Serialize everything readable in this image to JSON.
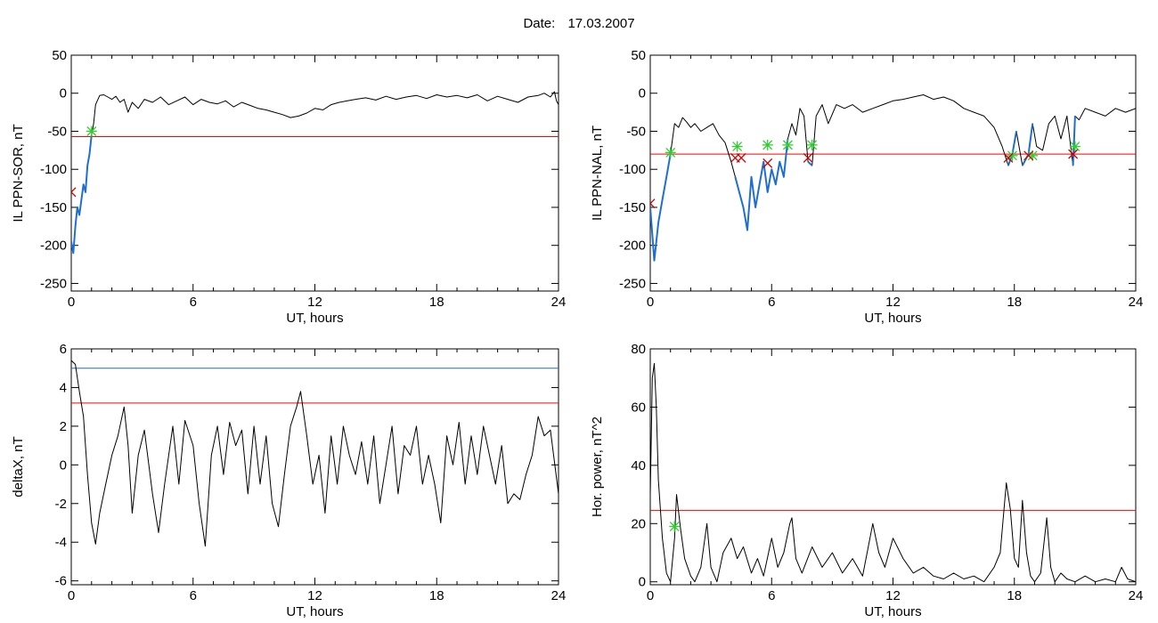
{
  "header": {
    "date_label": "Date:",
    "date_value": "17.03.2007"
  },
  "colors": {
    "trace": "#000000",
    "threshold_red": "#ff0000",
    "threshold_blue": "#1f6fd1",
    "highlight": "#1f6fd1",
    "marker_green": "#33cc33",
    "marker_red": "#cc0000"
  },
  "chart_data": [
    {
      "id": "sor",
      "type": "line",
      "xlabel": "UT, hours",
      "ylabel": "IL PPN-SOR, nT",
      "xlim": [
        0,
        24
      ],
      "ylim": [
        -260,
        50
      ],
      "xticks": [
        0,
        6,
        12,
        18,
        24
      ],
      "yticks": [
        50,
        0,
        -50,
        -100,
        -150,
        -200,
        -250
      ],
      "series": [
        {
          "x": [
            0,
            0.1,
            0.2,
            0.3,
            0.4,
            0.5,
            0.6,
            0.7,
            0.8,
            0.9,
            1.0,
            1.1,
            1.2,
            1.4,
            1.6,
            1.8,
            2.0,
            2.2,
            2.4,
            2.6,
            2.8,
            3.0,
            3.3,
            3.6,
            4.0,
            4.4,
            4.8,
            5.2,
            5.6,
            6.0,
            6.4,
            6.8,
            7.2,
            7.6,
            8.0,
            8.4,
            8.8,
            9.2,
            9.6,
            10.0,
            10.4,
            10.8,
            11.2,
            11.6,
            12.0,
            12.4,
            12.8,
            13.2,
            13.6,
            14.0,
            14.5,
            15.0,
            15.5,
            16.0,
            16.5,
            17.0,
            17.5,
            18.0,
            18.5,
            19.0,
            19.5,
            20.0,
            20.5,
            21.0,
            21.5,
            22.0,
            22.5,
            23.0,
            23.3,
            23.6,
            23.8,
            23.9,
            24.0
          ],
          "y": [
            -195,
            -210,
            -175,
            -150,
            -160,
            -140,
            -120,
            -130,
            -95,
            -80,
            -55,
            -40,
            -15,
            -3,
            -2,
            -5,
            -8,
            -4,
            -12,
            -8,
            -25,
            -12,
            -20,
            -8,
            -12,
            -5,
            -15,
            -10,
            -5,
            -15,
            -8,
            -12,
            -14,
            -10,
            -18,
            -12,
            -16,
            -20,
            -22,
            -25,
            -28,
            -32,
            -30,
            -26,
            -20,
            -22,
            -15,
            -12,
            -10,
            -8,
            -6,
            -9,
            -4,
            -8,
            -5,
            -3,
            -7,
            -2,
            -5,
            -3,
            -6,
            -2,
            -10,
            -4,
            -8,
            -12,
            -5,
            -3,
            0,
            -5,
            2,
            -10,
            -15
          ]
        },
        {
          "name": "",
          "x": [
            0,
            0.1,
            0.2,
            0.3,
            0.4,
            0.5,
            0.6,
            0.7,
            0.8,
            0.9,
            1.0
          ],
          "y": [
            -195,
            -210,
            -175,
            -150,
            -160,
            -140,
            -120,
            -130,
            -95,
            -80,
            -55
          ]
        }
      ],
      "threshold_red": -57,
      "markers_green": [
        {
          "x": 1.0,
          "y": -50
        }
      ],
      "markers_red": [
        {
          "x": 0.0,
          "y": -130
        }
      ]
    },
    {
      "id": "nal",
      "type": "line",
      "xlabel": "UT, hours",
      "ylabel": "IL PPN-NAL, nT",
      "xlim": [
        0,
        24
      ],
      "ylim": [
        -260,
        50
      ],
      "xticks": [
        0,
        6,
        12,
        18,
        24
      ],
      "yticks": [
        50,
        0,
        -50,
        -100,
        -150,
        -200,
        -250
      ],
      "series": [
        {
          "x": [
            0,
            0.2,
            0.4,
            0.6,
            0.8,
            1.0,
            1.2,
            1.4,
            1.6,
            1.8,
            2.0,
            2.2,
            2.5,
            2.8,
            3.1,
            3.4,
            3.7,
            4.0,
            4.2,
            4.4,
            4.6,
            4.8,
            5.0,
            5.2,
            5.4,
            5.6,
            5.8,
            6.0,
            6.2,
            6.4,
            6.6,
            6.8,
            7.0,
            7.2,
            7.4,
            7.6,
            7.8,
            8.0,
            8.2,
            8.5,
            8.8,
            9.2,
            9.6,
            10.0,
            10.5,
            11.0,
            11.5,
            12.0,
            12.5,
            13.0,
            13.5,
            14.0,
            14.5,
            15.0,
            15.5,
            16.0,
            16.5,
            17.0,
            17.4,
            17.7,
            17.9,
            18.1,
            18.4,
            18.7,
            18.9,
            19.1,
            19.4,
            19.7,
            20.0,
            20.3,
            20.6,
            20.9,
            21.0,
            21.2,
            21.5,
            22.0,
            22.5,
            23.0,
            23.5,
            24.0
          ],
          "y": [
            -150,
            -220,
            -170,
            -140,
            -110,
            -80,
            -40,
            -45,
            -32,
            -38,
            -45,
            -40,
            -50,
            -45,
            -40,
            -55,
            -65,
            -90,
            -110,
            -130,
            -150,
            -180,
            -110,
            -150,
            -120,
            -90,
            -130,
            -100,
            -120,
            -90,
            -110,
            -60,
            -40,
            -55,
            -20,
            -30,
            -90,
            -95,
            -30,
            -15,
            -40,
            -15,
            -20,
            -15,
            -25,
            -20,
            -15,
            -10,
            -8,
            -5,
            -2,
            -8,
            -5,
            -10,
            -20,
            -25,
            -30,
            -45,
            -70,
            -95,
            -80,
            -50,
            -95,
            -80,
            -40,
            -70,
            -75,
            -40,
            -30,
            -60,
            -30,
            -95,
            -30,
            -35,
            -20,
            -25,
            -30,
            -20,
            -25,
            -20
          ]
        },
        {
          "name": "",
          "x": [
            0,
            0.2,
            0.4,
            0.6,
            0.8,
            1.0
          ],
          "y": [
            -150,
            -220,
            -170,
            -140,
            -110,
            -80
          ]
        },
        {
          "name": "",
          "x": [
            4.2,
            4.4,
            4.6,
            4.8,
            5.0,
            5.2,
            5.4,
            5.6,
            5.8,
            6.0,
            6.2,
            6.4,
            6.6,
            6.8
          ],
          "y": [
            -110,
            -130,
            -150,
            -180,
            -110,
            -150,
            -120,
            -90,
            -130,
            -100,
            -120,
            -90,
            -110,
            -60
          ]
        },
        {
          "name": "",
          "x": [
            7.8,
            8.0
          ],
          "y": [
            -90,
            -95
          ]
        },
        {
          "name": "",
          "x": [
            17.7,
            17.9,
            18.1
          ],
          "y": [
            -95,
            -80,
            -50
          ]
        },
        {
          "name": "",
          "x": [
            18.4,
            18.7,
            18.9
          ],
          "y": [
            -95,
            -80,
            -40
          ]
        },
        {
          "name": "",
          "x": [
            20.9,
            21.0
          ],
          "y": [
            -95,
            -30
          ]
        }
      ],
      "threshold_red": -80,
      "markers_green": [
        {
          "x": 1.0,
          "y": -78
        },
        {
          "x": 4.3,
          "y": -70
        },
        {
          "x": 5.8,
          "y": -68
        },
        {
          "x": 6.8,
          "y": -68
        },
        {
          "x": 8.0,
          "y": -68
        },
        {
          "x": 17.9,
          "y": -82
        },
        {
          "x": 18.9,
          "y": -82
        },
        {
          "x": 21.0,
          "y": -70
        }
      ],
      "markers_red": [
        {
          "x": 0.0,
          "y": -145
        },
        {
          "x": 4.2,
          "y": -85
        },
        {
          "x": 4.5,
          "y": -85
        },
        {
          "x": 5.8,
          "y": -92
        },
        {
          "x": 7.8,
          "y": -85
        },
        {
          "x": 17.7,
          "y": -85
        },
        {
          "x": 18.7,
          "y": -82
        },
        {
          "x": 20.9,
          "y": -80
        }
      ]
    },
    {
      "id": "deltax",
      "type": "line",
      "xlabel": "UT, hours",
      "ylabel": "deltaX, nT",
      "xlim": [
        0,
        24
      ],
      "ylim": [
        -6.2,
        6
      ],
      "xticks": [
        0,
        6,
        12,
        18,
        24
      ],
      "yticks": [
        6,
        4,
        2,
        0,
        -2,
        -4,
        -6
      ],
      "series": [
        {
          "x": [
            0,
            0.2,
            0.4,
            0.6,
            0.8,
            1.0,
            1.2,
            1.4,
            1.7,
            2.0,
            2.3,
            2.6,
            2.8,
            3.0,
            3.3,
            3.6,
            4.0,
            4.3,
            4.6,
            5.0,
            5.3,
            5.6,
            6.0,
            6.3,
            6.6,
            6.9,
            7.2,
            7.5,
            7.8,
            8.1,
            8.4,
            8.7,
            9.0,
            9.3,
            9.6,
            9.9,
            10.2,
            10.5,
            10.8,
            11.1,
            11.3,
            11.6,
            11.9,
            12.2,
            12.5,
            12.8,
            13.1,
            13.4,
            13.7,
            14.0,
            14.3,
            14.6,
            14.9,
            15.2,
            15.5,
            15.8,
            16.1,
            16.4,
            16.7,
            17.0,
            17.3,
            17.6,
            17.9,
            18.2,
            18.5,
            18.8,
            19.1,
            19.4,
            19.7,
            20.0,
            20.3,
            20.6,
            20.9,
            21.2,
            21.5,
            21.8,
            22.1,
            22.4,
            22.7,
            23.0,
            23.3,
            23.6,
            24.0
          ],
          "y": [
            5.4,
            5.2,
            3.8,
            2.5,
            -0.5,
            -3.0,
            -4.1,
            -2.5,
            -1.0,
            0.5,
            1.5,
            3.0,
            1.0,
            -2.5,
            0.5,
            1.8,
            -1.5,
            -3.5,
            -1.0,
            2.0,
            -1.0,
            2.3,
            1.0,
            -2.0,
            -4.2,
            0.5,
            2.0,
            -0.5,
            2.2,
            1.0,
            1.8,
            -1.5,
            2.0,
            -1.0,
            1.5,
            -2.0,
            -3.2,
            -0.5,
            2.0,
            3.0,
            3.8,
            1.5,
            -1.0,
            0.5,
            -2.5,
            1.5,
            -1.0,
            2.0,
            0.5,
            -0.5,
            1.2,
            -1.0,
            1.5,
            -2.0,
            0.0,
            2.0,
            -1.5,
            1.0,
            0.5,
            2.0,
            -1.0,
            0.5,
            -1.0,
            -3.0,
            1.5,
            0.0,
            2.2,
            -1.0,
            1.5,
            -0.5,
            2.0,
            0.5,
            -1.0,
            1.0,
            -2.0,
            -1.5,
            -1.8,
            -0.5,
            0.5,
            2.5,
            1.5,
            1.8,
            -1.5
          ]
        }
      ],
      "threshold_red": 3.2,
      "threshold_blue": 5.0
    },
    {
      "id": "power",
      "type": "line",
      "xlabel": "UT, hours",
      "ylabel": "Hor. power, nT^2",
      "xlim": [
        0,
        24
      ],
      "ylim": [
        -1,
        80
      ],
      "xticks": [
        0,
        6,
        12,
        18,
        24
      ],
      "yticks": [
        80,
        60,
        40,
        20,
        0
      ],
      "series": [
        {
          "x": [
            0,
            0.1,
            0.2,
            0.3,
            0.4,
            0.6,
            0.8,
            1.0,
            1.2,
            1.3,
            1.5,
            1.7,
            2.0,
            2.2,
            2.5,
            2.8,
            3.0,
            3.3,
            3.6,
            4.0,
            4.3,
            4.6,
            5.0,
            5.3,
            5.6,
            6.0,
            6.3,
            6.6,
            6.9,
            7.0,
            7.2,
            7.5,
            8.0,
            8.5,
            9.0,
            9.5,
            10.0,
            10.5,
            11.0,
            11.3,
            11.6,
            12.0,
            12.5,
            13.0,
            13.5,
            14.0,
            14.5,
            15.0,
            15.5,
            16.0,
            16.5,
            17.0,
            17.3,
            17.6,
            17.8,
            18.0,
            18.2,
            18.4,
            18.6,
            18.8,
            19.0,
            19.3,
            19.6,
            19.8,
            20.0,
            20.3,
            20.6,
            21.0,
            21.5,
            22.0,
            22.5,
            23.0,
            23.3,
            23.6,
            24.0
          ],
          "y": [
            30,
            70,
            75,
            60,
            35,
            15,
            3,
            0,
            15,
            30,
            18,
            8,
            2,
            0,
            5,
            20,
            5,
            0,
            10,
            15,
            8,
            12,
            3,
            8,
            2,
            15,
            5,
            10,
            20,
            22,
            8,
            3,
            12,
            5,
            10,
            3,
            8,
            2,
            20,
            10,
            5,
            15,
            8,
            3,
            5,
            2,
            1,
            3,
            1,
            2,
            0,
            5,
            10,
            34,
            25,
            8,
            5,
            28,
            10,
            2,
            0,
            3,
            22,
            5,
            0,
            3,
            1,
            0,
            2,
            0,
            1,
            0,
            5,
            1,
            0
          ]
        }
      ],
      "threshold_red": 24.5,
      "markers_green": [
        {
          "x": 1.2,
          "y": 19
        }
      ]
    }
  ]
}
